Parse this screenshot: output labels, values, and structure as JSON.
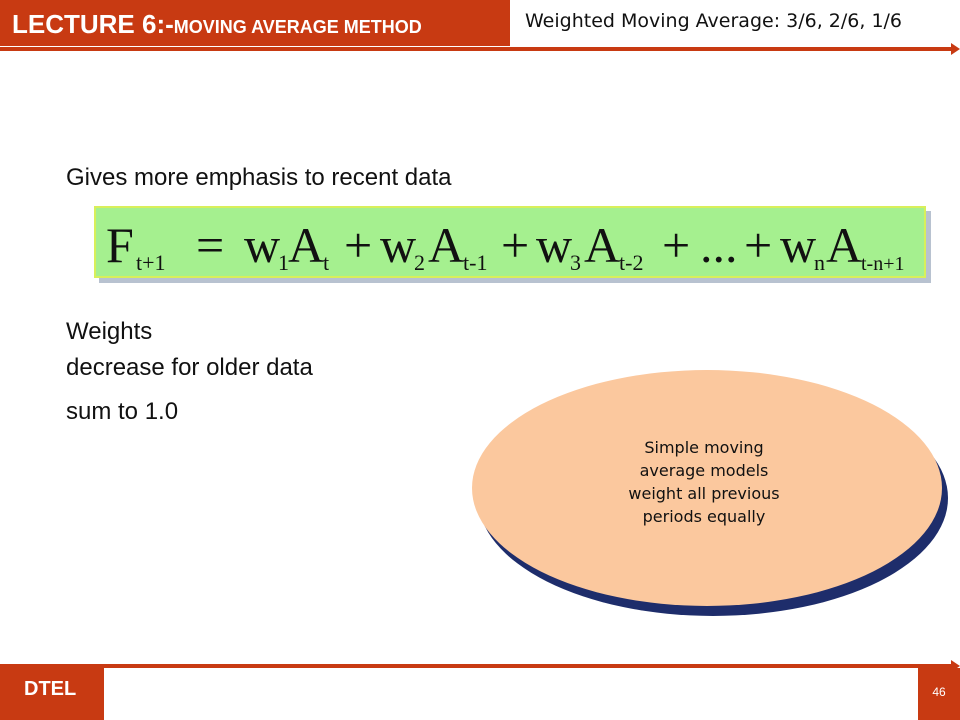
{
  "header": {
    "lecture_title": "LECTURE 6:-",
    "lecture_subtitle": "MOVING AVERAGE METHOD",
    "slide_subtitle": "Weighted Moving Average: 3/6, 2/6, 1/6"
  },
  "body": {
    "emphasis_text": "Gives more emphasis to recent data",
    "weights_heading": "Weights",
    "weights_point_1": "decrease for older data",
    "weights_point_2": "sum to 1.0"
  },
  "formula": {
    "lhs": "F",
    "lhs_sub": "t+1",
    "equals": "=",
    "terms": [
      {
        "coef": "w",
        "coef_sub": "1",
        "var": "A",
        "var_sub": "t"
      },
      {
        "coef": "w",
        "coef_sub": "2",
        "var": "A",
        "var_sub": "t-1"
      },
      {
        "coef": "w",
        "coef_sub": "3",
        "var": "A",
        "var_sub": "t-2"
      },
      {
        "coef": "w",
        "coef_sub": "n",
        "var": "A",
        "var_sub": "t-n+1"
      }
    ],
    "plus": "+",
    "ellipsis": "..."
  },
  "callout": {
    "line_1": "Simple moving",
    "line_2": "average models",
    "line_3": "weight all previous",
    "line_4": "periods equally"
  },
  "footer": {
    "org": "DTEL",
    "page_number": "46"
  },
  "colors": {
    "accent": "#c83a12",
    "formula_fill": "#a5f08f",
    "callout_fill": "#fbc89e",
    "callout_shadow": "#1e2d6b"
  }
}
